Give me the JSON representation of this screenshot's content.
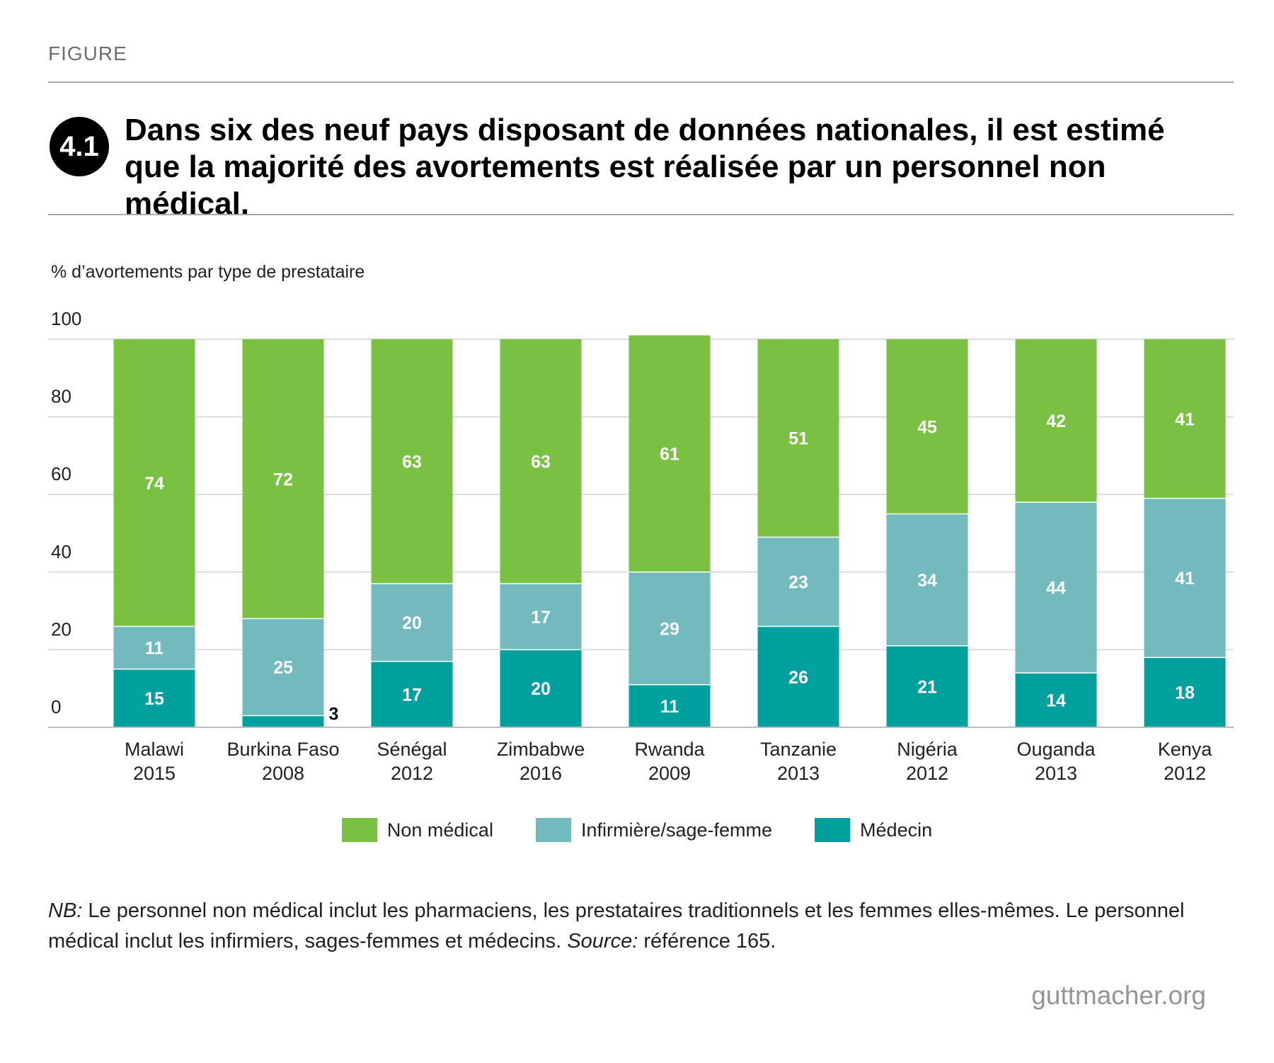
{
  "header": {
    "eyebrow": "FIGURE",
    "badge": "4.1",
    "title": "Dans six des neuf pays disposant de données nationales, il est estimé que la majorité des avortements est réalisée par un personnel non médical."
  },
  "chart_data": {
    "type": "bar",
    "stacked": true,
    "ylabel": "% d’avortements par type de prestataire",
    "ylim": [
      0,
      100
    ],
    "yticks": [
      0,
      20,
      40,
      60,
      80,
      100
    ],
    "grid": true,
    "legend_position": "bottom",
    "categories": [
      {
        "name": "Malawi",
        "year": "2015"
      },
      {
        "name": "Burkina Faso",
        "year": "2008"
      },
      {
        "name": "Sénégal",
        "year": "2012"
      },
      {
        "name": "Zimbabwe",
        "year": "2016"
      },
      {
        "name": "Rwanda",
        "year": "2009"
      },
      {
        "name": "Tanzanie",
        "year": "2013"
      },
      {
        "name": "Nigéria",
        "year": "2012"
      },
      {
        "name": "Ouganda",
        "year": "2013"
      },
      {
        "name": "Kenya",
        "year": "2012"
      }
    ],
    "series": [
      {
        "name": "Médecin",
        "color": "#00a09e",
        "values": [
          15,
          3,
          17,
          20,
          11,
          26,
          21,
          14,
          18
        ]
      },
      {
        "name": "Infirmière/sage-femme",
        "color": "#72babe",
        "values": [
          11,
          25,
          20,
          17,
          29,
          23,
          34,
          44,
          41
        ]
      },
      {
        "name": "Non médical",
        "color": "#7ac143",
        "values": [
          74,
          72,
          63,
          63,
          61,
          51,
          45,
          42,
          41
        ]
      }
    ],
    "legend_order": [
      "Non médical",
      "Infirmière/sage-femme",
      "Médecin"
    ]
  },
  "note": {
    "nb_label": "NB:",
    "nb_text": " Le personnel non médical inclut les pharmaciens, les prestataires traditionnels et les femmes elles-mêmes. Le personnel médical inclut les infirmiers, sages-femmes et médecins. ",
    "source_label": "Source:",
    "source_text": " référence 165."
  },
  "footer": {
    "brand": "guttmacher.org"
  }
}
